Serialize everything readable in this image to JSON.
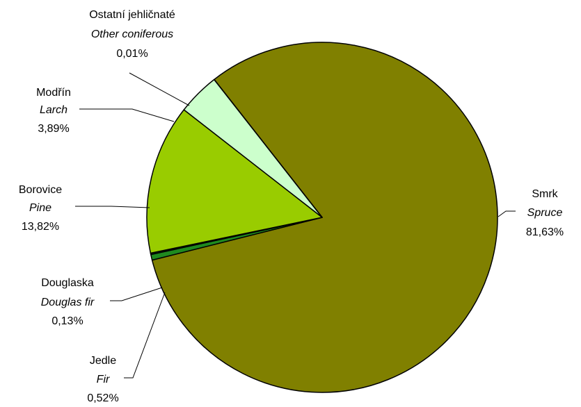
{
  "chart_data": {
    "type": "pie",
    "title": "",
    "start_angle_deg": 232,
    "direction": "clockwise",
    "slices": [
      {
        "name_cz": "Smrk",
        "name_en": "Spruce",
        "value": 81.63,
        "label": "81,63%",
        "color": "#808000",
        "label_side": "right"
      },
      {
        "name_cz": "Jedle",
        "name_en": "Fir",
        "value": 0.52,
        "label": "0,52%",
        "color": "#1f8a1f",
        "label_side": "left"
      },
      {
        "name_cz": "Douglaska",
        "name_en": "Douglas fir",
        "value": 0.13,
        "label": "0,13%",
        "color": "#0e4d0e",
        "label_side": "left"
      },
      {
        "name_cz": "Borovice",
        "name_en": "Pine",
        "value": 13.82,
        "label": "13,82%",
        "color": "#99cc00",
        "label_side": "left"
      },
      {
        "name_cz": "Modřín",
        "name_en": "Larch",
        "value": 3.89,
        "label": "3,89%",
        "color": "#ccffcc",
        "label_side": "left"
      },
      {
        "name_cz": "Ostatní jehličnaté",
        "name_en": "Other coniferous",
        "value": 0.01,
        "label": "0,01%",
        "color": "#ffffff",
        "label_side": "top"
      }
    ]
  }
}
